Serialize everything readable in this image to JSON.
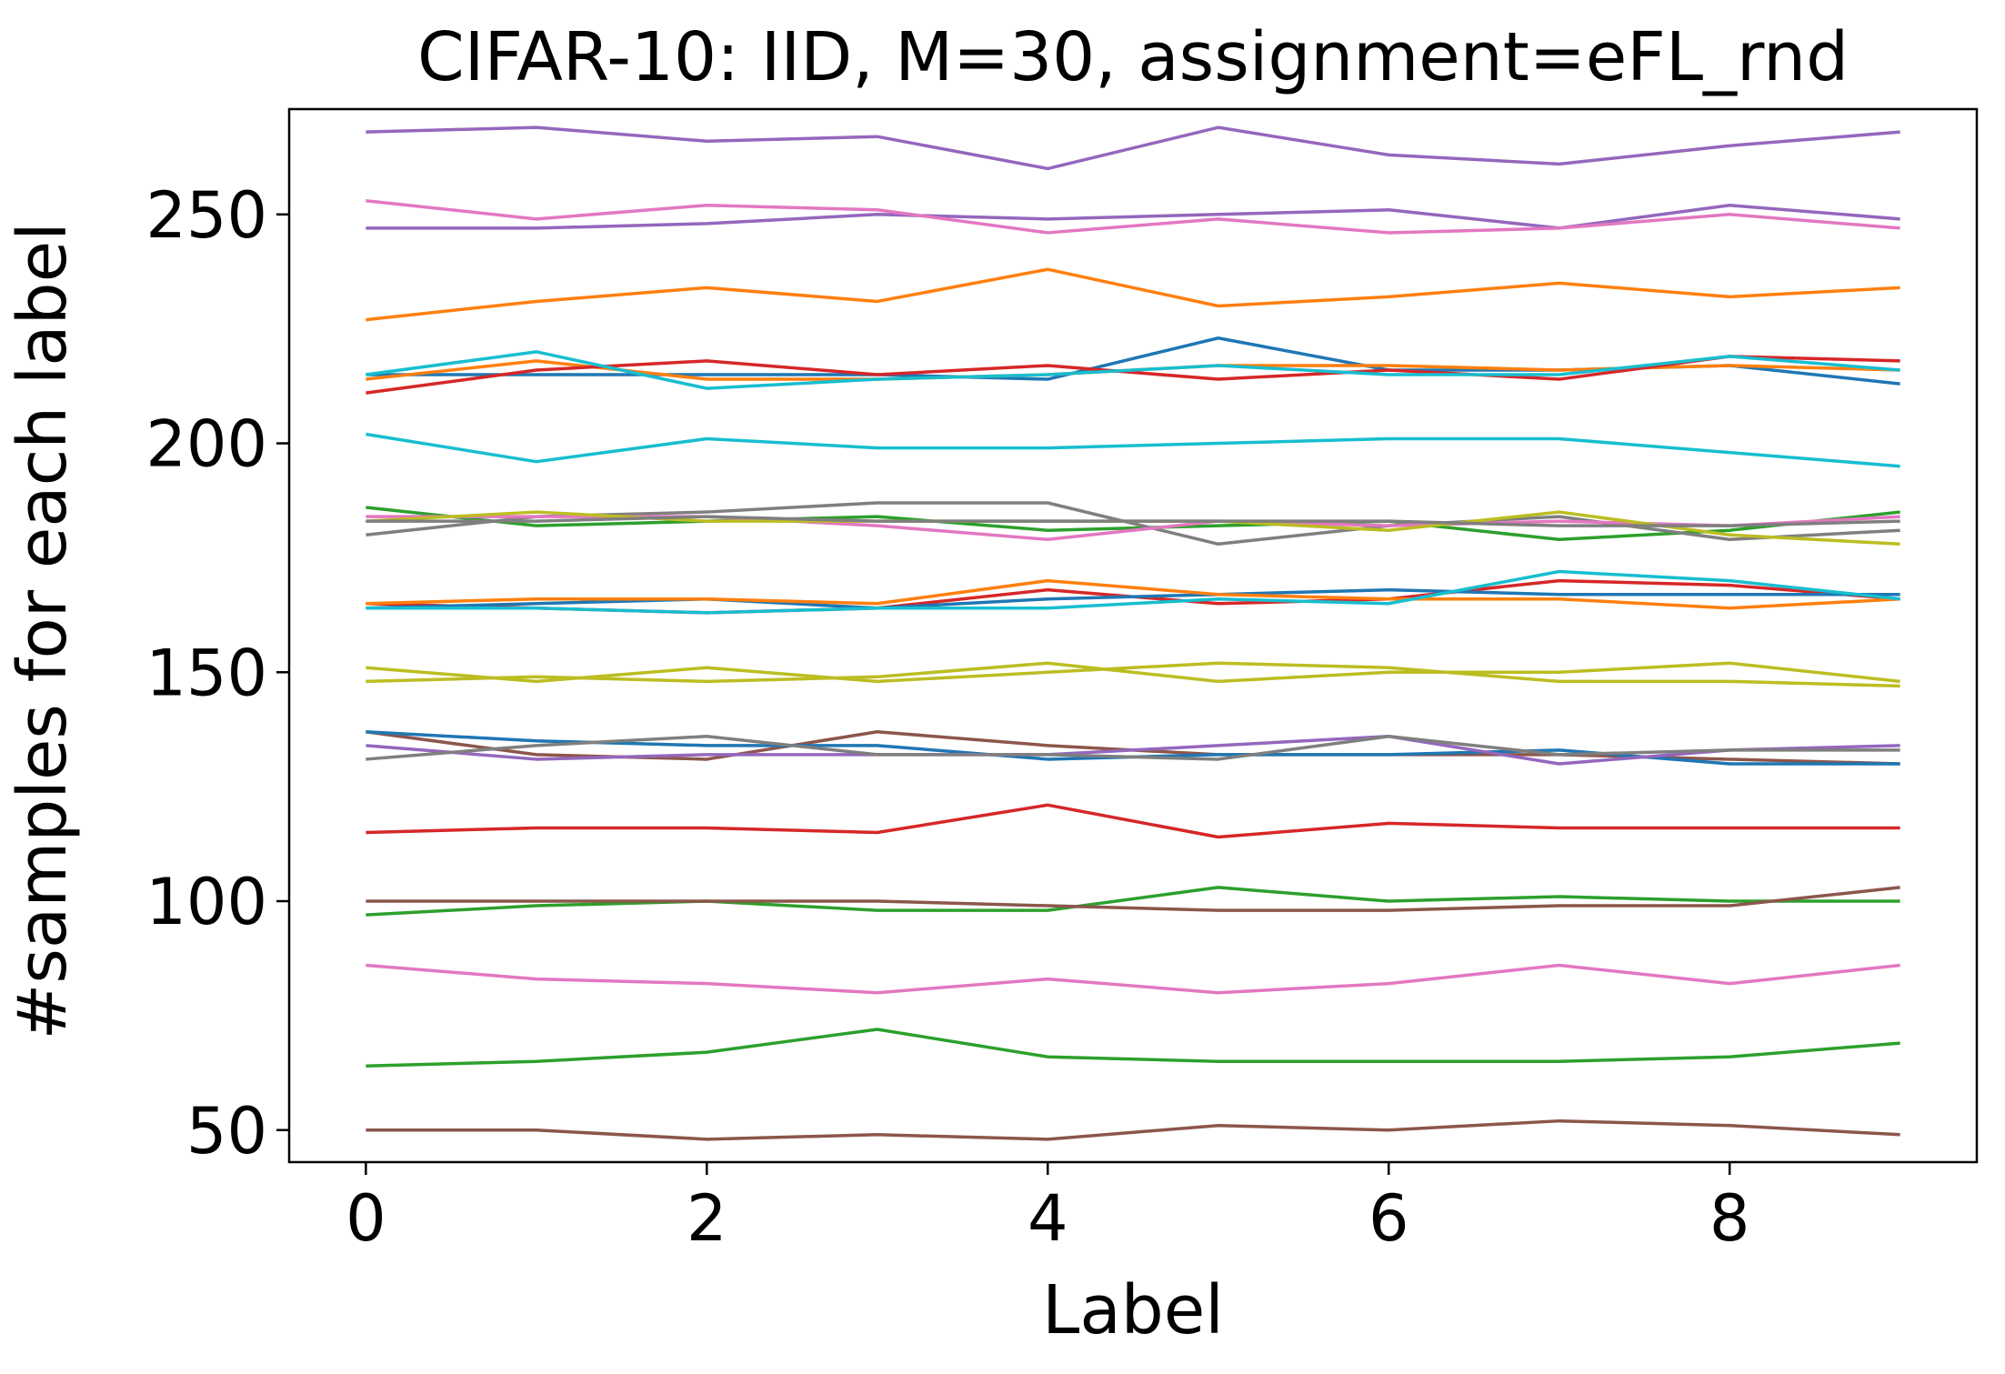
{
  "chart_data": {
    "type": "line",
    "title": "CIFAR-10: IID, M=30, assignment=eFL_rnd",
    "xlabel": "Label",
    "ylabel": "#samples for each label",
    "xlim": [
      -0.45,
      9.45
    ],
    "ylim": [
      43,
      273
    ],
    "grid": false,
    "legend": "none",
    "x": [
      0,
      1,
      2,
      3,
      4,
      5,
      6,
      7,
      8,
      9
    ],
    "xticks": [
      0,
      2,
      4,
      6,
      8
    ],
    "xtick_labels": [
      "0",
      "2",
      "4",
      "6",
      "8"
    ],
    "yticks": [
      50,
      100,
      150,
      200,
      250
    ],
    "ytick_labels": [
      "50",
      "100",
      "150",
      "200",
      "250"
    ],
    "series": [
      {
        "color": "#1f77b4",
        "values": [
          215,
          215,
          215,
          215,
          214,
          223,
          216,
          216,
          217,
          213
        ]
      },
      {
        "color": "#ff7f0e",
        "values": [
          214,
          218,
          214,
          214,
          215,
          217,
          217,
          216,
          217,
          216
        ]
      },
      {
        "color": "#2ca02c",
        "values": [
          186,
          182,
          183,
          184,
          181,
          182,
          183,
          179,
          181,
          185
        ]
      },
      {
        "color": "#d62728",
        "values": [
          211,
          216,
          218,
          215,
          217,
          214,
          216,
          214,
          219,
          218
        ]
      },
      {
        "color": "#9467bd",
        "values": [
          247,
          247,
          248,
          250,
          249,
          250,
          251,
          247,
          252,
          249
        ]
      },
      {
        "color": "#8c564b",
        "values": [
          137,
          132,
          131,
          137,
          134,
          132,
          132,
          132,
          131,
          130
        ]
      },
      {
        "color": "#e377c2",
        "values": [
          253,
          249,
          252,
          251,
          246,
          249,
          246,
          247,
          250,
          247
        ]
      },
      {
        "color": "#7f7f7f",
        "values": [
          180,
          184,
          185,
          187,
          187,
          178,
          182,
          184,
          179,
          181
        ]
      },
      {
        "color": "#bcbd22",
        "values": [
          151,
          148,
          151,
          148,
          150,
          152,
          151,
          148,
          148,
          147
        ]
      },
      {
        "color": "#17becf",
        "values": [
          215,
          220,
          212,
          214,
          215,
          217,
          215,
          215,
          219,
          216
        ]
      },
      {
        "color": "#1f77b4",
        "values": [
          137,
          135,
          134,
          134,
          131,
          132,
          132,
          133,
          130,
          130
        ]
      },
      {
        "color": "#ff7f0e",
        "values": [
          227,
          231,
          234,
          231,
          238,
          230,
          232,
          235,
          232,
          234
        ]
      },
      {
        "color": "#2ca02c",
        "values": [
          97,
          99,
          100,
          98,
          98,
          103,
          100,
          101,
          100,
          100
        ]
      },
      {
        "color": "#d62728",
        "values": [
          165,
          164,
          163,
          164,
          168,
          165,
          166,
          170,
          169,
          166
        ]
      },
      {
        "color": "#9467bd",
        "values": [
          134,
          131,
          132,
          132,
          132,
          134,
          136,
          130,
          133,
          134
        ]
      },
      {
        "color": "#8c564b",
        "values": [
          100,
          100,
          100,
          100,
          99,
          98,
          98,
          99,
          99,
          103
        ]
      },
      {
        "color": "#e377c2",
        "values": [
          184,
          184,
          184,
          182,
          179,
          183,
          182,
          183,
          182,
          184
        ]
      },
      {
        "color": "#7f7f7f",
        "values": [
          131,
          134,
          136,
          132,
          132,
          131,
          136,
          132,
          133,
          133
        ]
      },
      {
        "color": "#bcbd22",
        "values": [
          183,
          185,
          183,
          183,
          183,
          183,
          181,
          185,
          180,
          178
        ]
      },
      {
        "color": "#17becf",
        "values": [
          202,
          196,
          201,
          199,
          199,
          200,
          201,
          201,
          198,
          195
        ]
      },
      {
        "color": "#1f77b4",
        "values": [
          164,
          165,
          166,
          164,
          166,
          167,
          168,
          167,
          167,
          167
        ]
      },
      {
        "color": "#ff7f0e",
        "values": [
          165,
          166,
          166,
          165,
          170,
          167,
          166,
          166,
          164,
          166
        ]
      },
      {
        "color": "#2ca02c",
        "values": [
          64,
          65,
          67,
          72,
          66,
          65,
          65,
          65,
          66,
          69
        ]
      },
      {
        "color": "#d62728",
        "values": [
          115,
          116,
          116,
          115,
          121,
          114,
          117,
          116,
          116,
          116
        ]
      },
      {
        "color": "#9467bd",
        "values": [
          268,
          269,
          266,
          267,
          260,
          269,
          263,
          261,
          265,
          268
        ]
      },
      {
        "color": "#8c564b",
        "values": [
          50,
          50,
          48,
          49,
          48,
          51,
          50,
          52,
          51,
          49
        ]
      },
      {
        "color": "#e377c2",
        "values": [
          86,
          83,
          82,
          80,
          83,
          80,
          82,
          86,
          82,
          86
        ]
      },
      {
        "color": "#7f7f7f",
        "values": [
          183,
          183,
          184,
          183,
          183,
          183,
          183,
          182,
          182,
          183
        ]
      },
      {
        "color": "#bcbd22",
        "values": [
          148,
          149,
          148,
          149,
          152,
          148,
          150,
          150,
          152,
          148
        ]
      },
      {
        "color": "#17becf",
        "values": [
          164,
          164,
          163,
          164,
          164,
          166,
          165,
          172,
          170,
          166
        ]
      }
    ]
  }
}
